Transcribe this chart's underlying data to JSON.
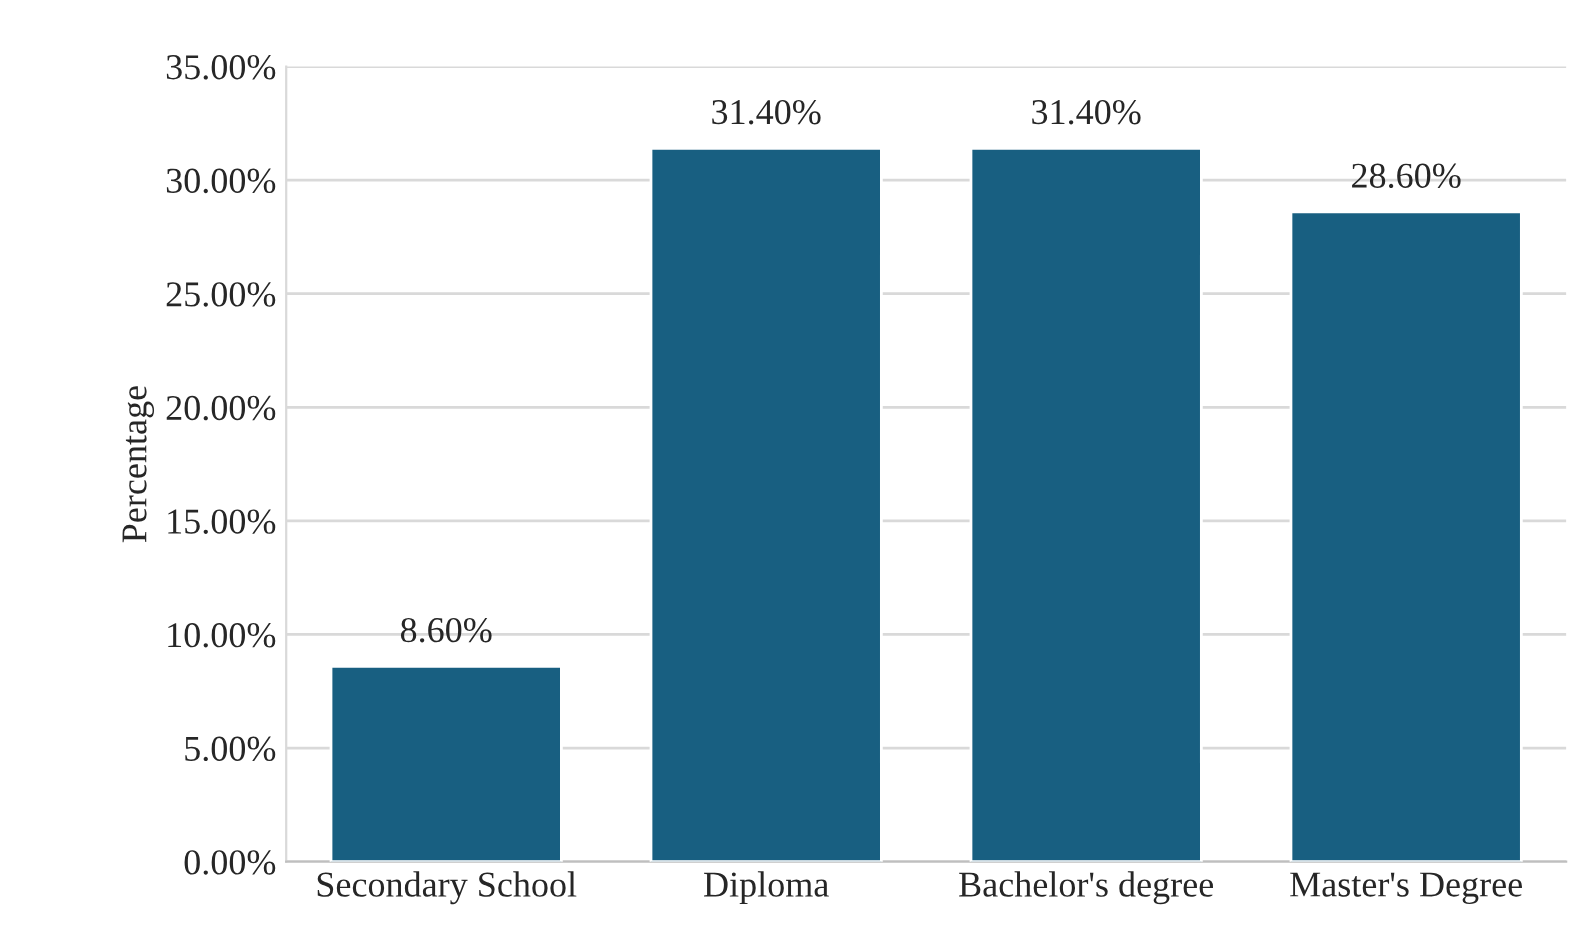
{
  "chart_data": {
    "type": "bar",
    "ylabel": "Percentage",
    "categories": [
      "Secondary School",
      "Diploma",
      "Bachelor's degree",
      "Master's Degree"
    ],
    "values": [
      8.6,
      31.4,
      31.4,
      28.6
    ],
    "value_labels": [
      "8.60%",
      "31.40%",
      "31.40%",
      "28.60%"
    ],
    "color": "#185f81",
    "ylim": [
      0,
      35
    ],
    "yticks": [
      {
        "value": 0,
        "label": "0.00%"
      },
      {
        "value": 5,
        "label": "5.00%"
      },
      {
        "value": 10,
        "label": "10.00%"
      },
      {
        "value": 15,
        "label": "15.00%"
      },
      {
        "value": 20,
        "label": "20.00%"
      },
      {
        "value": 25,
        "label": "25.00%"
      },
      {
        "value": 30,
        "label": "30.00%"
      },
      {
        "value": 35,
        "label": "35.00%"
      }
    ],
    "grid": "y",
    "legend": false
  }
}
